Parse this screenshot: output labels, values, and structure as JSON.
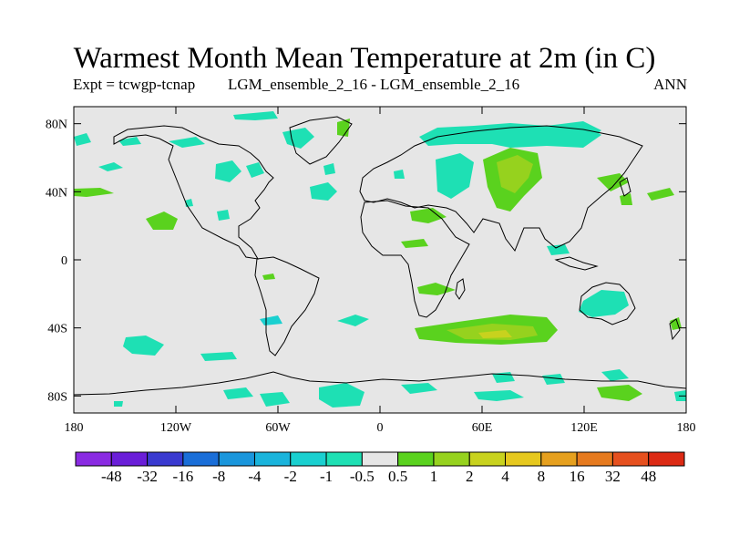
{
  "title": "Warmest Month Mean Temperature at 2m (in C)",
  "subtitle_left": "Expt = tcwgp-tcnap",
  "subtitle_center": "LGM_ensemble_2_16 - LGM_ensemble_2_16",
  "subtitle_right": "ANN",
  "map": {
    "projection": "cylindrical equidistant",
    "lon_range": [
      -180,
      180
    ],
    "lat_range": [
      -90,
      90
    ],
    "background_color": "#e6e6e6",
    "lat_ticks": [
      {
        "value": 80,
        "label": "80N"
      },
      {
        "value": 40,
        "label": "40N"
      },
      {
        "value": 0,
        "label": "0"
      },
      {
        "value": -40,
        "label": "40S"
      },
      {
        "value": -80,
        "label": "80S"
      }
    ],
    "lon_ticks": [
      {
        "value": -180,
        "label": "180"
      },
      {
        "value": -120,
        "label": "120W"
      },
      {
        "value": -60,
        "label": "60W"
      },
      {
        "value": 0,
        "label": "0"
      },
      {
        "value": 60,
        "label": "60E"
      },
      {
        "value": 120,
        "label": "120E"
      },
      {
        "value": 180,
        "label": "180"
      }
    ]
  },
  "colorbar": {
    "colors": [
      "#8a2be2",
      "#6a1ed8",
      "#3a3ad0",
      "#1a6ed8",
      "#1a96dc",
      "#1ab4dc",
      "#1ad0d0",
      "#1ee0b4",
      "#e6e6e6",
      "#5ad21e",
      "#96d21e",
      "#c8d21e",
      "#e6c81e",
      "#e6a01e",
      "#e67a1e",
      "#e6501e",
      "#dc2a14"
    ],
    "labels": [
      "-48",
      "-32",
      "-16",
      "-8",
      "-4",
      "-2",
      "-1",
      "-0.5",
      "0.5",
      "1",
      "2",
      "4",
      "8",
      "16",
      "32",
      "48"
    ]
  }
}
